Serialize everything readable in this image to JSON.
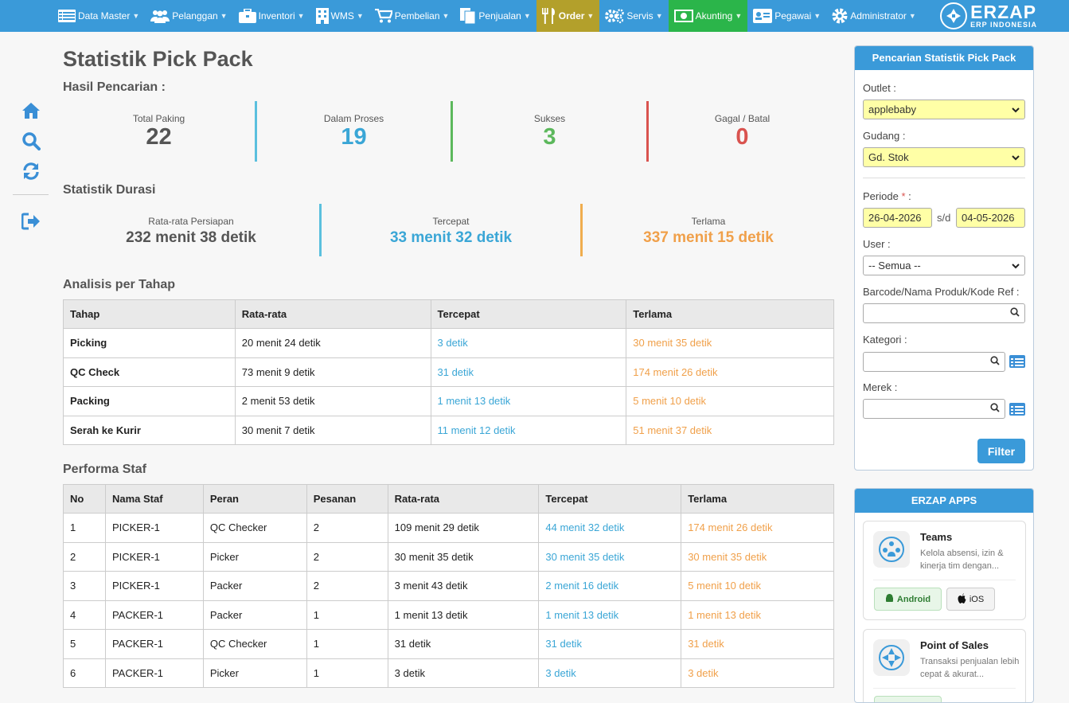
{
  "nav": {
    "items": [
      {
        "label": "Data Master",
        "icon": "table-icon"
      },
      {
        "label": "Pelanggan",
        "icon": "users-icon"
      },
      {
        "label": "Inventori",
        "icon": "briefcase-icon"
      },
      {
        "label": "WMS",
        "icon": "building-icon"
      },
      {
        "label": "Pembelian",
        "icon": "cart-icon"
      },
      {
        "label": "Penjualan",
        "icon": "document-icon"
      },
      {
        "label": "Order",
        "icon": "utensils-icon"
      },
      {
        "label": "Servis",
        "icon": "cogs-icon"
      },
      {
        "label": "Akunting",
        "icon": "money-icon"
      },
      {
        "label": "Pegawai",
        "icon": "id-card-icon"
      },
      {
        "label": "Administrator",
        "icon": "gear-icon"
      }
    ],
    "brand_title": "ERZAP",
    "brand_sub": "ERP INDONESIA",
    "colors": {
      "bar": "#3a9ad9",
      "order": "#b3a02b",
      "akunting": "#2bb54a"
    }
  },
  "page": {
    "title": "Statistik Pick Pack",
    "hasil_title": "Hasil Pencarian :",
    "durasi_title": "Statistik Durasi",
    "tahap_title": "Analisis per Tahap",
    "staf_title": "Performa Staf"
  },
  "stats": [
    {
      "label": "Total Paking",
      "value": "22",
      "color": "#555555"
    },
    {
      "label": "Dalam Proses",
      "value": "19",
      "color": "#3aa6d6"
    },
    {
      "label": "Sukses",
      "value": "3",
      "color": "#5cb85c"
    },
    {
      "label": "Gagal / Batal",
      "value": "0",
      "color": "#d9534f"
    }
  ],
  "durasi": [
    {
      "label": "Rata-rata Persiapan",
      "value": "232 menit 38 detik",
      "color": "#555555"
    },
    {
      "label": "Tercepat",
      "value": "33 menit 32 detik",
      "color": "#3aa6d6"
    },
    {
      "label": "Terlama",
      "value": "337 menit 15 detik",
      "color": "#f0a04a"
    }
  ],
  "tahap_table": {
    "headers": [
      "Tahap",
      "Rata-rata",
      "Tercepat",
      "Terlama"
    ],
    "rows": [
      [
        "Picking",
        "20 menit 24 detik",
        "3 detik",
        "30 menit 35 detik"
      ],
      [
        "QC Check",
        "73 menit 9 detik",
        "31 detik",
        "174 menit 26 detik"
      ],
      [
        "Packing",
        "2 menit 53 detik",
        "1 menit 13 detik",
        "5 menit 10 detik"
      ],
      [
        "Serah ke Kurir",
        "30 menit 7 detik",
        "11 menit 12 detik",
        "51 menit 37 detik"
      ]
    ]
  },
  "staf_table": {
    "headers": [
      "No",
      "Nama Staf",
      "Peran",
      "Pesanan",
      "Rata-rata",
      "Tercepat",
      "Terlama"
    ],
    "rows": [
      [
        "1",
        "PICKER-1",
        "QC Checker",
        "2",
        "109 menit 29 detik",
        "44 menit 32 detik",
        "174 menit 26 detik"
      ],
      [
        "2",
        "PICKER-1",
        "Picker",
        "2",
        "30 menit 35 detik",
        "30 menit 35 detik",
        "30 menit 35 detik"
      ],
      [
        "3",
        "PICKER-1",
        "Packer",
        "2",
        "3 menit 43 detik",
        "2 menit 16 detik",
        "5 menit 10 detik"
      ],
      [
        "4",
        "PACKER-1",
        "Packer",
        "1",
        "1 menit 13 detik",
        "1 menit 13 detik",
        "1 menit 13 detik"
      ],
      [
        "5",
        "PACKER-1",
        "QC Checker",
        "1",
        "31 detik",
        "31 detik",
        "31 detik"
      ],
      [
        "6",
        "PACKER-1",
        "Picker",
        "1",
        "3 detik",
        "3 detik",
        "3 detik"
      ]
    ]
  },
  "search_panel": {
    "title": "Pencarian Statistik Pick Pack",
    "outlet_label": "Outlet :",
    "outlet_value": "applebaby",
    "gudang_label": "Gudang :",
    "gudang_value": "Gd. Stok",
    "periode_label": "Periode",
    "periode_required": "*",
    "periode_colon": ":",
    "date_from": "26-04-2026",
    "sd_label": "s/d",
    "date_to": "04-05-2026",
    "user_label": "User :",
    "user_value": "-- Semua --",
    "barcode_label": "Barcode/Nama Produk/Kode Ref :",
    "barcode_value": "",
    "kategori_label": "Kategori :",
    "kategori_value": "",
    "merek_label": "Merek :",
    "merek_value": "",
    "filter_label": "Filter"
  },
  "apps_panel": {
    "title": "ERZAP APPS",
    "apps": [
      {
        "name": "Teams",
        "desc": "Kelola absensi, izin & kinerja tim dengan...",
        "android": "Android",
        "ios": "iOS"
      },
      {
        "name": "Point of Sales",
        "desc": "Transaksi penjualan lebih cepat & akurat..."
      }
    ]
  }
}
